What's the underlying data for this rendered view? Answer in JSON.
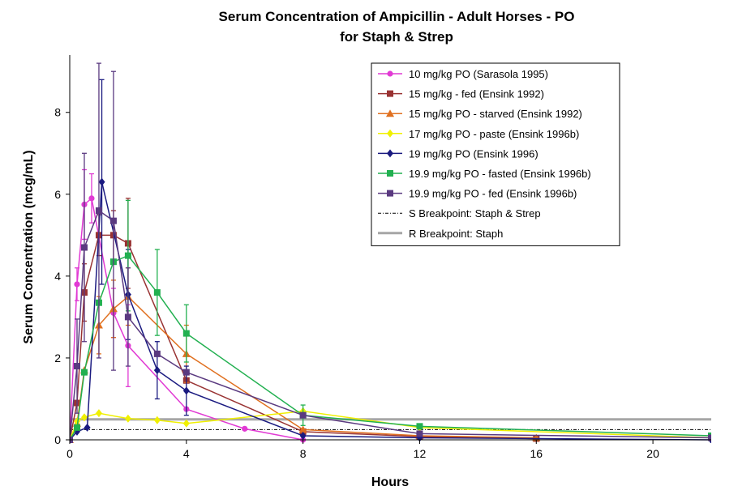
{
  "chart_data": {
    "type": "line",
    "title": [
      "Serum Concentration of Ampicillin  - Adult Horses - PO",
      "for Staph & Strep"
    ],
    "xlabel": "Hours",
    "ylabel": "Serum Concentration (mcg/mL)",
    "xlim": [
      0,
      22
    ],
    "ylim": [
      0,
      9.4
    ],
    "xticks": [
      0,
      4,
      8,
      12,
      16,
      20
    ],
    "yticks": [
      0,
      2,
      4,
      6,
      8
    ],
    "grid": false,
    "legend_position": "top-right",
    "series": [
      {
        "name": "10 mg/kg PO (Sarasola 1995)",
        "color": "#e13ad4",
        "marker": "circle",
        "points": [
          {
            "x": 0,
            "y": 0
          },
          {
            "x": 0.25,
            "y": 3.8,
            "err": 0.4
          },
          {
            "x": 0.5,
            "y": 5.75,
            "err": 0.85
          },
          {
            "x": 0.75,
            "y": 5.9,
            "err": 0.6
          },
          {
            "x": 1.5,
            "y": 3.1,
            "err": 0.6
          },
          {
            "x": 2,
            "y": 2.3,
            "err": 1.0
          },
          {
            "x": 4,
            "y": 0.75
          },
          {
            "x": 6,
            "y": 0.27
          },
          {
            "x": 8,
            "y": 0
          }
        ]
      },
      {
        "name": "15 mg/kg - fed (Ensink 1992)",
        "color": "#993333",
        "marker": "square",
        "points": [
          {
            "x": 0,
            "y": 0
          },
          {
            "x": 0.25,
            "y": 0.9
          },
          {
            "x": 0.5,
            "y": 3.6,
            "err": 0.7
          },
          {
            "x": 1,
            "y": 5.0,
            "err": 0.5
          },
          {
            "x": 1.5,
            "y": 5.0,
            "err": 0.6
          },
          {
            "x": 2,
            "y": 4.8,
            "err": 1.1
          },
          {
            "x": 4,
            "y": 1.45
          },
          {
            "x": 8,
            "y": 0.2
          },
          {
            "x": 12,
            "y": 0.08
          },
          {
            "x": 16,
            "y": 0.03
          }
        ]
      },
      {
        "name": "15 mg/kg PO - starved (Ensink 1992)",
        "color": "#e07020",
        "marker": "triangle",
        "points": [
          {
            "x": 0,
            "y": 0
          },
          {
            "x": 0.25,
            "y": 0.4
          },
          {
            "x": 0.5,
            "y": 1.7
          },
          {
            "x": 1,
            "y": 2.8,
            "err": 0.7
          },
          {
            "x": 1.5,
            "y": 3.2,
            "err": 0.7
          },
          {
            "x": 2,
            "y": 3.5,
            "err": 0.7
          },
          {
            "x": 4,
            "y": 2.1,
            "err": 0.7
          },
          {
            "x": 8,
            "y": 0.25
          },
          {
            "x": 12,
            "y": 0.1
          },
          {
            "x": 16,
            "y": 0.05
          }
        ]
      },
      {
        "name": "17 mg/kg PO - paste (Ensink 1996b)",
        "color": "#f0f000",
        "marker": "diamond",
        "points": [
          {
            "x": 0,
            "y": 0
          },
          {
            "x": 0.25,
            "y": 0.45
          },
          {
            "x": 0.5,
            "y": 0.55
          },
          {
            "x": 1,
            "y": 0.65
          },
          {
            "x": 2,
            "y": 0.52
          },
          {
            "x": 3,
            "y": 0.48
          },
          {
            "x": 4,
            "y": 0.4
          },
          {
            "x": 8,
            "y": 0.7
          },
          {
            "x": 12,
            "y": 0.3
          },
          {
            "x": 22,
            "y": 0.05
          }
        ]
      },
      {
        "name": "19 mg/kg PO (Ensink 1996)",
        "color": "#1a1a80",
        "marker": "diamond",
        "points": [
          {
            "x": 0,
            "y": 0
          },
          {
            "x": 0.25,
            "y": 0.2
          },
          {
            "x": 0.6,
            "y": 0.3
          },
          {
            "x": 1.1,
            "y": 6.3,
            "err": 2.5
          },
          {
            "x": 2,
            "y": 3.55,
            "err": 1.1
          },
          {
            "x": 3,
            "y": 1.7,
            "err": 0.7
          },
          {
            "x": 4,
            "y": 1.2,
            "err": 0.6
          },
          {
            "x": 8,
            "y": 0.1
          },
          {
            "x": 12,
            "y": 0.05
          },
          {
            "x": 22,
            "y": 0
          }
        ]
      },
      {
        "name": "19.9 mg/kg PO - fasted (Ensink 1996b)",
        "color": "#22b050",
        "marker": "square",
        "points": [
          {
            "x": 0,
            "y": 0
          },
          {
            "x": 0.25,
            "y": 0.3
          },
          {
            "x": 0.5,
            "y": 1.65
          },
          {
            "x": 1,
            "y": 3.35
          },
          {
            "x": 1.5,
            "y": 4.35
          },
          {
            "x": 2,
            "y": 4.5,
            "err": 1.35
          },
          {
            "x": 3,
            "y": 3.6,
            "err": 1.05
          },
          {
            "x": 4,
            "y": 2.6,
            "err": 0.7
          },
          {
            "x": 8,
            "y": 0.6,
            "err": 0.25
          },
          {
            "x": 12,
            "y": 0.33
          },
          {
            "x": 22,
            "y": 0.1
          }
        ]
      },
      {
        "name": "19.9 mg/kg PO - fed (Ensink 1996b)",
        "color": "#5a3a80",
        "marker": "square",
        "points": [
          {
            "x": 0,
            "y": 0
          },
          {
            "x": 0.25,
            "y": 1.8,
            "err": 1.15
          },
          {
            "x": 0.5,
            "y": 4.7,
            "err": 2.3
          },
          {
            "x": 1,
            "y": 5.6,
            "err": 3.6
          },
          {
            "x": 1.5,
            "y": 5.35,
            "err": 3.65
          },
          {
            "x": 2,
            "y": 3.0,
            "err": 1.2
          },
          {
            "x": 3,
            "y": 2.1
          },
          {
            "x": 4,
            "y": 1.65
          },
          {
            "x": 8,
            "y": 0.6
          },
          {
            "x": 12,
            "y": 0.15
          },
          {
            "x": 22,
            "y": 0.05
          }
        ]
      }
    ],
    "reference_lines": [
      {
        "name": "S Breakpoint: Staph & Strep",
        "y": 0.25,
        "color": "#000000",
        "style": "dash-dot"
      },
      {
        "name": "R Breakpoint: Staph",
        "y": 0.5,
        "color": "#a6a6a6",
        "style": "solid"
      }
    ]
  }
}
